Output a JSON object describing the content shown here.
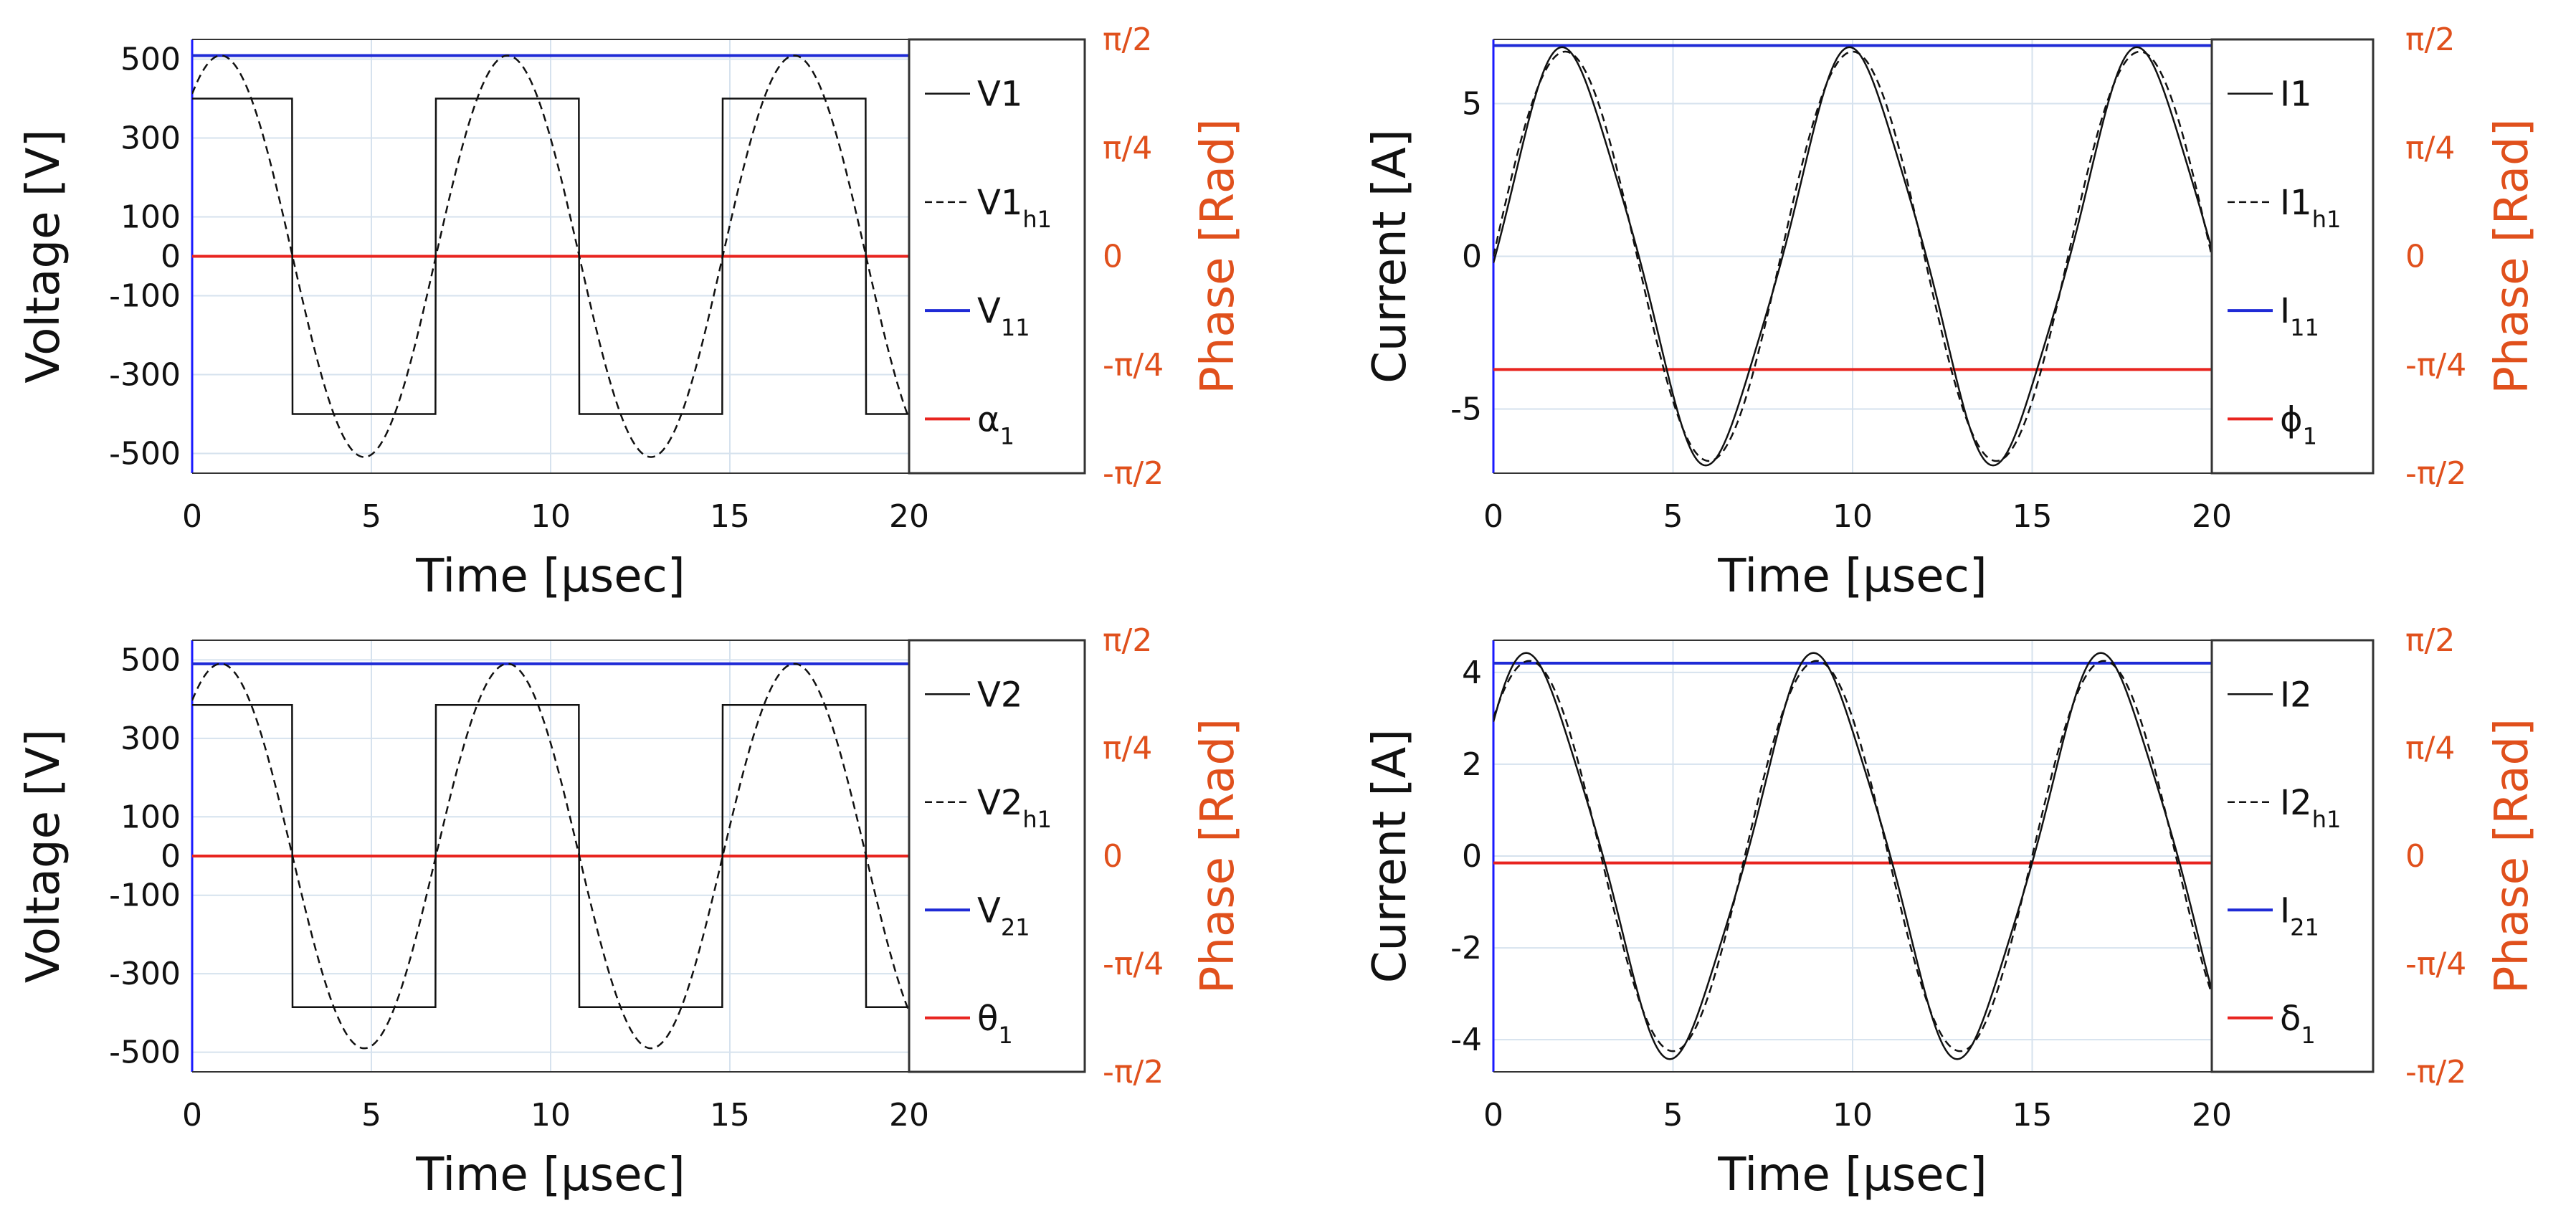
{
  "colors": {
    "signal": "#111111",
    "harmonic": "#111111",
    "amplitude": "#1f2bd6",
    "phase": "#e8241f",
    "phase_axis": "#e0501c",
    "grid": "#d6e2ee",
    "legend_border": "#333333"
  },
  "chart_data": [
    {
      "type": "line",
      "panel": "top-left",
      "xlabel": "Time [μsec]",
      "ylabel": "Voltage [V]",
      "y2label": "Phase [Rad]",
      "xlim": [
        0,
        20
      ],
      "ylim": [
        -550,
        550
      ],
      "xticks": [
        0,
        5,
        10,
        15,
        20
      ],
      "xtick_labels": [
        "0",
        "5",
        "10",
        "15",
        "20"
      ],
      "yticks": [
        500,
        300,
        100,
        0,
        -100,
        -300,
        -500
      ],
      "ytick_labels": [
        "500",
        "300",
        "100",
        "0",
        "-100",
        "-300",
        "-500"
      ],
      "y2ticks": [
        1.5708,
        0.7854,
        0,
        -0.7854,
        -1.5708
      ],
      "y2tick_labels": [
        "π/2",
        "π/4",
        "0",
        "-π/4",
        "-π/2"
      ],
      "y2lim": [
        -1.5708,
        1.5708
      ],
      "period": 8,
      "signal": {
        "shape": "square",
        "amplitude": 400,
        "rise_time": -1.2,
        "fall_time": 2.8
      },
      "harmonic": {
        "shape": "sine",
        "amplitude": 509,
        "peak_time": 0.8
      },
      "amplitude_level": 509,
      "phase_level": 0,
      "legend": [
        {
          "base": "V",
          "sub": "",
          "rest": "1",
          "style": "solid",
          "color_key": "signal"
        },
        {
          "base": "V1",
          "sub": "h1",
          "rest": "",
          "style": "dashed",
          "color_key": "harmonic"
        },
        {
          "base": "V",
          "sub": "11",
          "rest": "",
          "style": "solid",
          "color_key": "amplitude"
        },
        {
          "base": "α",
          "sub": "1",
          "rest": "",
          "style": "solid",
          "color_key": "phase"
        }
      ]
    },
    {
      "type": "line",
      "panel": "top-right",
      "xlabel": "Time [μsec]",
      "ylabel": "Current [A]",
      "y2label": "Phase [Rad]",
      "xlim": [
        0,
        20
      ],
      "ylim": [
        -7.1,
        7.1
      ],
      "xticks": [
        0,
        5,
        10,
        15,
        20
      ],
      "xtick_labels": [
        "0",
        "5",
        "10",
        "15",
        "20"
      ],
      "yticks": [
        5,
        0,
        -5
      ],
      "ytick_labels": [
        "5",
        "0",
        "-5"
      ],
      "y2ticks": [
        1.5708,
        0.7854,
        0,
        -0.7854,
        -1.5708
      ],
      "y2tick_labels": [
        "π/2",
        "π/4",
        "0",
        "-π/4",
        "-π/2"
      ],
      "y2lim": [
        -1.5708,
        1.5708
      ],
      "period": 8,
      "signal": {
        "shape": "sine",
        "amplitude": 6.5,
        "peak_time": 2.0,
        "distortion": 0.06
      },
      "harmonic": {
        "shape": "sine",
        "amplitude": 6.7,
        "peak_time": 2.0
      },
      "amplitude_level": 6.9,
      "phase_level": -0.82,
      "legend": [
        {
          "base": "I",
          "sub": "",
          "rest": "1",
          "style": "solid",
          "color_key": "signal"
        },
        {
          "base": "I1",
          "sub": "h1",
          "rest": "",
          "style": "dashed",
          "color_key": "harmonic"
        },
        {
          "base": "I",
          "sub": "11",
          "rest": "",
          "style": "solid",
          "color_key": "amplitude"
        },
        {
          "base": "ϕ",
          "sub": "1",
          "rest": "",
          "style": "solid",
          "color_key": "phase"
        }
      ]
    },
    {
      "type": "line",
      "panel": "bottom-left",
      "xlabel": "Time [μsec]",
      "ylabel": "Voltage [V]",
      "y2label": "Phase [Rad]",
      "xlim": [
        0,
        20
      ],
      "ylim": [
        -550,
        550
      ],
      "xticks": [
        0,
        5,
        10,
        15,
        20
      ],
      "xtick_labels": [
        "0",
        "5",
        "10",
        "15",
        "20"
      ],
      "yticks": [
        500,
        300,
        100,
        0,
        -100,
        -300,
        -500
      ],
      "ytick_labels": [
        "500",
        "300",
        "100",
        "0",
        "-100",
        "-300",
        "-500"
      ],
      "y2ticks": [
        1.5708,
        0.7854,
        0,
        -0.7854,
        -1.5708
      ],
      "y2tick_labels": [
        "π/2",
        "π/4",
        "0",
        "-π/4",
        "-π/2"
      ],
      "y2lim": [
        -1.5708,
        1.5708
      ],
      "period": 8,
      "signal": {
        "shape": "square",
        "amplitude": 385,
        "rise_time": -1.2,
        "fall_time": 2.8
      },
      "harmonic": {
        "shape": "sine",
        "amplitude": 490,
        "peak_time": 0.8
      },
      "amplitude_level": 490,
      "phase_level": 0,
      "legend": [
        {
          "base": "V",
          "sub": "",
          "rest": "2",
          "style": "solid",
          "color_key": "signal"
        },
        {
          "base": "V2",
          "sub": "h1",
          "rest": "",
          "style": "dashed",
          "color_key": "harmonic"
        },
        {
          "base": "V",
          "sub": "21",
          "rest": "",
          "style": "solid",
          "color_key": "amplitude"
        },
        {
          "base": "θ",
          "sub": "1",
          "rest": "",
          "style": "solid",
          "color_key": "phase"
        }
      ]
    },
    {
      "type": "line",
      "panel": "bottom-right",
      "xlabel": "Time [μsec]",
      "ylabel": "Current [A]",
      "y2label": "Phase [Rad]",
      "xlim": [
        0,
        20
      ],
      "ylim": [
        -4.7,
        4.7
      ],
      "xticks": [
        0,
        5,
        10,
        15,
        20
      ],
      "xtick_labels": [
        "0",
        "5",
        "10",
        "15",
        "20"
      ],
      "yticks": [
        4,
        2,
        0,
        -2,
        -4
      ],
      "ytick_labels": [
        "4",
        "2",
        "0",
        "-2",
        "-4"
      ],
      "y2ticks": [
        1.5708,
        0.7854,
        0,
        -0.7854,
        -1.5708
      ],
      "y2tick_labels": [
        "π/2",
        "π/4",
        "0",
        "-π/4",
        "-π/2"
      ],
      "y2lim": [
        -1.5708,
        1.5708
      ],
      "period": 8,
      "signal": {
        "shape": "sine",
        "amplitude": 4.2,
        "peak_time": 1.0,
        "distortion": 0.06
      },
      "harmonic": {
        "shape": "sine",
        "amplitude": 4.25,
        "peak_time": 1.0
      },
      "amplitude_level": 4.2,
      "phase_level": -0.05,
      "legend": [
        {
          "base": "I",
          "sub": "",
          "rest": "2",
          "style": "solid",
          "color_key": "signal"
        },
        {
          "base": "I2",
          "sub": "h1",
          "rest": "",
          "style": "dashed",
          "color_key": "harmonic"
        },
        {
          "base": "I",
          "sub": "21",
          "rest": "",
          "style": "solid",
          "color_key": "amplitude"
        },
        {
          "base": "δ",
          "sub": "1",
          "rest": "",
          "style": "solid",
          "color_key": "phase"
        }
      ]
    }
  ]
}
